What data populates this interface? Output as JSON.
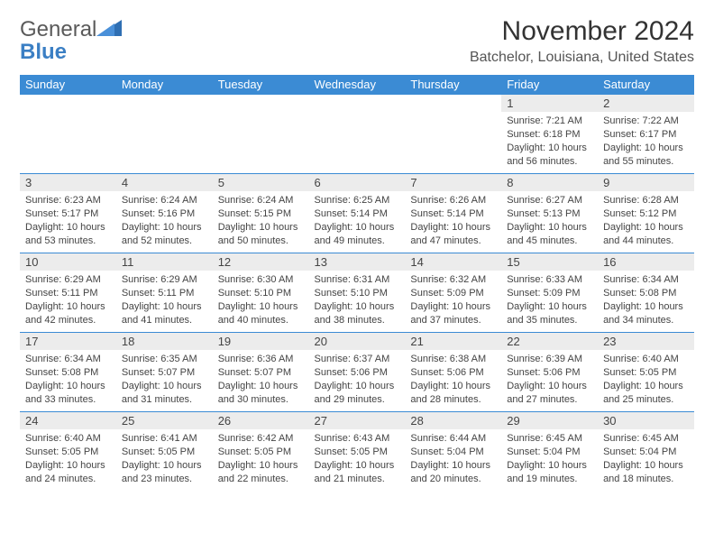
{
  "brand": {
    "name_part1": "General",
    "name_part2": "Blue"
  },
  "title": "November 2024",
  "location": "Batchelor, Louisiana, United States",
  "colors": {
    "header_bg": "#3b8bd4",
    "header_text": "#ffffff",
    "daynum_bg": "#ececec",
    "border": "#3b8bd4",
    "brand_gray": "#5a5a5a",
    "brand_blue": "#3b7fc4"
  },
  "weekdays": [
    "Sunday",
    "Monday",
    "Tuesday",
    "Wednesday",
    "Thursday",
    "Friday",
    "Saturday"
  ],
  "weeks": [
    [
      {
        "empty": true
      },
      {
        "empty": true
      },
      {
        "empty": true
      },
      {
        "empty": true
      },
      {
        "empty": true
      },
      {
        "day": "1",
        "sunrise": "Sunrise: 7:21 AM",
        "sunset": "Sunset: 6:18 PM",
        "daylight": "Daylight: 10 hours and 56 minutes."
      },
      {
        "day": "2",
        "sunrise": "Sunrise: 7:22 AM",
        "sunset": "Sunset: 6:17 PM",
        "daylight": "Daylight: 10 hours and 55 minutes."
      }
    ],
    [
      {
        "day": "3",
        "sunrise": "Sunrise: 6:23 AM",
        "sunset": "Sunset: 5:17 PM",
        "daylight": "Daylight: 10 hours and 53 minutes."
      },
      {
        "day": "4",
        "sunrise": "Sunrise: 6:24 AM",
        "sunset": "Sunset: 5:16 PM",
        "daylight": "Daylight: 10 hours and 52 minutes."
      },
      {
        "day": "5",
        "sunrise": "Sunrise: 6:24 AM",
        "sunset": "Sunset: 5:15 PM",
        "daylight": "Daylight: 10 hours and 50 minutes."
      },
      {
        "day": "6",
        "sunrise": "Sunrise: 6:25 AM",
        "sunset": "Sunset: 5:14 PM",
        "daylight": "Daylight: 10 hours and 49 minutes."
      },
      {
        "day": "7",
        "sunrise": "Sunrise: 6:26 AM",
        "sunset": "Sunset: 5:14 PM",
        "daylight": "Daylight: 10 hours and 47 minutes."
      },
      {
        "day": "8",
        "sunrise": "Sunrise: 6:27 AM",
        "sunset": "Sunset: 5:13 PM",
        "daylight": "Daylight: 10 hours and 45 minutes."
      },
      {
        "day": "9",
        "sunrise": "Sunrise: 6:28 AM",
        "sunset": "Sunset: 5:12 PM",
        "daylight": "Daylight: 10 hours and 44 minutes."
      }
    ],
    [
      {
        "day": "10",
        "sunrise": "Sunrise: 6:29 AM",
        "sunset": "Sunset: 5:11 PM",
        "daylight": "Daylight: 10 hours and 42 minutes."
      },
      {
        "day": "11",
        "sunrise": "Sunrise: 6:29 AM",
        "sunset": "Sunset: 5:11 PM",
        "daylight": "Daylight: 10 hours and 41 minutes."
      },
      {
        "day": "12",
        "sunrise": "Sunrise: 6:30 AM",
        "sunset": "Sunset: 5:10 PM",
        "daylight": "Daylight: 10 hours and 40 minutes."
      },
      {
        "day": "13",
        "sunrise": "Sunrise: 6:31 AM",
        "sunset": "Sunset: 5:10 PM",
        "daylight": "Daylight: 10 hours and 38 minutes."
      },
      {
        "day": "14",
        "sunrise": "Sunrise: 6:32 AM",
        "sunset": "Sunset: 5:09 PM",
        "daylight": "Daylight: 10 hours and 37 minutes."
      },
      {
        "day": "15",
        "sunrise": "Sunrise: 6:33 AM",
        "sunset": "Sunset: 5:09 PM",
        "daylight": "Daylight: 10 hours and 35 minutes."
      },
      {
        "day": "16",
        "sunrise": "Sunrise: 6:34 AM",
        "sunset": "Sunset: 5:08 PM",
        "daylight": "Daylight: 10 hours and 34 minutes."
      }
    ],
    [
      {
        "day": "17",
        "sunrise": "Sunrise: 6:34 AM",
        "sunset": "Sunset: 5:08 PM",
        "daylight": "Daylight: 10 hours and 33 minutes."
      },
      {
        "day": "18",
        "sunrise": "Sunrise: 6:35 AM",
        "sunset": "Sunset: 5:07 PM",
        "daylight": "Daylight: 10 hours and 31 minutes."
      },
      {
        "day": "19",
        "sunrise": "Sunrise: 6:36 AM",
        "sunset": "Sunset: 5:07 PM",
        "daylight": "Daylight: 10 hours and 30 minutes."
      },
      {
        "day": "20",
        "sunrise": "Sunrise: 6:37 AM",
        "sunset": "Sunset: 5:06 PM",
        "daylight": "Daylight: 10 hours and 29 minutes."
      },
      {
        "day": "21",
        "sunrise": "Sunrise: 6:38 AM",
        "sunset": "Sunset: 5:06 PM",
        "daylight": "Daylight: 10 hours and 28 minutes."
      },
      {
        "day": "22",
        "sunrise": "Sunrise: 6:39 AM",
        "sunset": "Sunset: 5:06 PM",
        "daylight": "Daylight: 10 hours and 27 minutes."
      },
      {
        "day": "23",
        "sunrise": "Sunrise: 6:40 AM",
        "sunset": "Sunset: 5:05 PM",
        "daylight": "Daylight: 10 hours and 25 minutes."
      }
    ],
    [
      {
        "day": "24",
        "sunrise": "Sunrise: 6:40 AM",
        "sunset": "Sunset: 5:05 PM",
        "daylight": "Daylight: 10 hours and 24 minutes."
      },
      {
        "day": "25",
        "sunrise": "Sunrise: 6:41 AM",
        "sunset": "Sunset: 5:05 PM",
        "daylight": "Daylight: 10 hours and 23 minutes."
      },
      {
        "day": "26",
        "sunrise": "Sunrise: 6:42 AM",
        "sunset": "Sunset: 5:05 PM",
        "daylight": "Daylight: 10 hours and 22 minutes."
      },
      {
        "day": "27",
        "sunrise": "Sunrise: 6:43 AM",
        "sunset": "Sunset: 5:05 PM",
        "daylight": "Daylight: 10 hours and 21 minutes."
      },
      {
        "day": "28",
        "sunrise": "Sunrise: 6:44 AM",
        "sunset": "Sunset: 5:04 PM",
        "daylight": "Daylight: 10 hours and 20 minutes."
      },
      {
        "day": "29",
        "sunrise": "Sunrise: 6:45 AM",
        "sunset": "Sunset: 5:04 PM",
        "daylight": "Daylight: 10 hours and 19 minutes."
      },
      {
        "day": "30",
        "sunrise": "Sunrise: 6:45 AM",
        "sunset": "Sunset: 5:04 PM",
        "daylight": "Daylight: 10 hours and 18 minutes."
      }
    ]
  ]
}
